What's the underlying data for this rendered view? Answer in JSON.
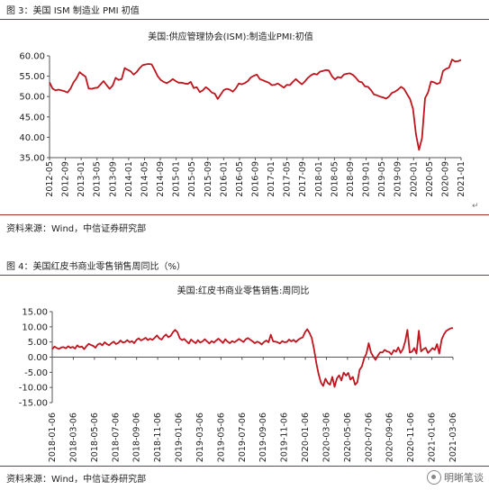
{
  "figure3": {
    "caption": "图 3：美国 ISM 制造业 PMI 初值",
    "source": "资料来源：Wind，中信证券研究部",
    "chart_data": {
      "type": "line",
      "title": "美国:供应管理协会(ISM):制造业PMI:初值",
      "xlabel": "",
      "ylabel": "",
      "ylim": [
        35,
        60
      ],
      "yticks": [
        "60.00",
        "55.00",
        "50.00",
        "45.00",
        "40.00",
        "35.00"
      ],
      "ytick_values": [
        60,
        55,
        50,
        45,
        40,
        35
      ],
      "xticks": [
        "2012-05",
        "2012-09",
        "2013-01",
        "2013-05",
        "2013-09",
        "2014-01",
        "2014-05",
        "2014-09",
        "2015-01",
        "2015-05",
        "2015-09",
        "2016-01",
        "2016-05",
        "2016-09",
        "2017-01",
        "2017-05",
        "2017-09",
        "2018-01",
        "2018-05",
        "2018-09",
        "2019-01",
        "2019-05",
        "2019-09",
        "2020-01",
        "2020-05",
        "2020-09",
        "2021-01"
      ],
      "line_color": "#c0141e",
      "grid": false,
      "series": [
        {
          "values": [
            53.5,
            52.0,
            51.5,
            51.7,
            51.5,
            51.3,
            51.0,
            52.0,
            53.5,
            54.5,
            56.0,
            55.4,
            54.9,
            52.0,
            51.9,
            52.1,
            52.2,
            53.0,
            53.8,
            52.8,
            51.9,
            52.7,
            54.6,
            54.1,
            54.3,
            57.0,
            56.6,
            56.2,
            55.4,
            56.0,
            57.0,
            57.7,
            57.9,
            58.0,
            57.9,
            56.5,
            55.0,
            54.1,
            53.6,
            53.3,
            53.7,
            54.3,
            53.8,
            53.4,
            53.4,
            53.2,
            53.1,
            53.6,
            52.1,
            52.3,
            51.1,
            51.5,
            52.3,
            51.8,
            51.0,
            50.7,
            49.4,
            50.5,
            51.6,
            51.9,
            51.7,
            51.2,
            52.0,
            53.2,
            53.0,
            53.3,
            53.8,
            54.7,
            55.1,
            55.4,
            54.3,
            54.0,
            53.7,
            53.4,
            52.8,
            52.9,
            53.2,
            52.7,
            52.2,
            52.9,
            52.8,
            53.6,
            54.3,
            53.6,
            53.0,
            53.7,
            54.6,
            55.2,
            55.6,
            55.4,
            56.1,
            56.3,
            56.5,
            56.4,
            55.0,
            54.2,
            54.8,
            54.6,
            55.4,
            55.6,
            55.7,
            55.3,
            54.6,
            53.7,
            53.5,
            52.5,
            52.4,
            51.6,
            50.5,
            50.3,
            50.0,
            49.8,
            49.5,
            50.0,
            50.9,
            51.2,
            51.7,
            52.4,
            51.9,
            50.6,
            49.4,
            47.0,
            40.6,
            36.9,
            39.8,
            49.6,
            51.0,
            53.7,
            53.5,
            53.1,
            53.4,
            56.3,
            56.8,
            57.1,
            59.1,
            58.6,
            58.7,
            59.0
          ]
        }
      ]
    }
  },
  "figure4": {
    "caption": "图 4：美国红皮书商业零售销售周同比（%）",
    "source": "资料来源：Wind，中信证券研究部",
    "chart_data": {
      "type": "line",
      "title": "美国:红皮书商业零售销售:周同比",
      "xlabel": "",
      "ylabel": "",
      "ylim": [
        -15,
        15
      ],
      "yticks": [
        "15.00",
        "10.00",
        "5.00",
        "0.00",
        "-5.00",
        "-10.00",
        "-15.00"
      ],
      "ytick_values": [
        15,
        10,
        5,
        0,
        -5,
        -10,
        -15
      ],
      "xticks": [
        "2018-01-06",
        "2018-03-06",
        "2018-05-06",
        "2018-07-06",
        "2018-09-06",
        "2018-11-06",
        "2019-01-06",
        "2019-03-06",
        "2019-05-06",
        "2019-07-06",
        "2019-09-06",
        "2019-11-06",
        "2020-01-06",
        "2020-03-06",
        "2020-05-06",
        "2020-07-06",
        "2020-09-06",
        "2020-11-06",
        "2021-01-06",
        "2021-03-06"
      ],
      "line_color": "#c0141e",
      "grid": false,
      "series": [
        {
          "values": [
            2.6,
            3.5,
            3.0,
            2.7,
            3.2,
            3.3,
            2.9,
            3.6,
            3.1,
            3.4,
            2.8,
            3.9,
            3.3,
            3.5,
            2.6,
            3.6,
            4.4,
            4.0,
            3.7,
            3.1,
            4.2,
            4.5,
            3.9,
            4.9,
            4.3,
            3.9,
            4.6,
            5.1,
            4.3,
            4.7,
            5.5,
            4.8,
            5.0,
            5.6,
            4.9,
            5.3,
            4.6,
            5.7,
            6.2,
            5.5,
            5.9,
            6.4,
            5.6,
            6.1,
            5.7,
            6.4,
            7.2,
            6.2,
            5.8,
            6.8,
            7.5,
            6.6,
            7.0,
            8.2,
            9.0,
            8.2,
            6.2,
            5.6,
            6.0,
            5.2,
            4.5,
            5.8,
            5.1,
            4.6,
            5.6,
            4.8,
            5.2,
            5.9,
            5.2,
            4.5,
            5.3,
            4.8,
            5.5,
            6.1,
            5.4,
            4.7,
            5.9,
            5.1,
            4.6,
            5.3,
            4.9,
            5.4,
            6.0,
            5.5,
            5.0,
            5.9,
            6.3,
            5.7,
            5.2,
            4.6,
            5.1,
            4.8,
            4.2,
            5.0,
            5.5,
            4.9,
            7.4,
            5.2,
            5.1,
            4.9,
            4.5,
            5.3,
            4.9,
            5.0,
            5.8,
            5.2,
            5.7,
            5.0,
            5.7,
            6.2,
            6.5,
            8.2,
            9.2,
            8.0,
            6.3,
            2.5,
            -2.0,
            -5.6,
            -8.4,
            -9.5,
            -7.1,
            -8.5,
            -9.1,
            -6.5,
            -9.8,
            -7.0,
            -6.0,
            -7.7,
            -5.1,
            -6.1,
            -5.2,
            -7.4,
            -6.5,
            -9.1,
            -8.3,
            -4.2,
            -3.0,
            -0.4,
            1.2,
            4.6,
            1.5,
            0.2,
            -0.9,
            0.5,
            1.6,
            1.5,
            2.4,
            1.9,
            1.7,
            0.9,
            2.3,
            1.8,
            3.2,
            1.4,
            2.6,
            5.1,
            9.0,
            1.5,
            1.8,
            3.0,
            1.2,
            8.7,
            1.9,
            2.6,
            3.1,
            1.4,
            2.1,
            3.0,
            2.4,
            4.3,
            1.2,
            5.8,
            7.5,
            8.6,
            9.1,
            9.5,
            9.6
          ]
        }
      ]
    }
  },
  "watermark": {
    "text": "明晰笔谈",
    "icon": "wechat-logo-icon"
  },
  "marks": {
    "return_arrow": "↵"
  }
}
